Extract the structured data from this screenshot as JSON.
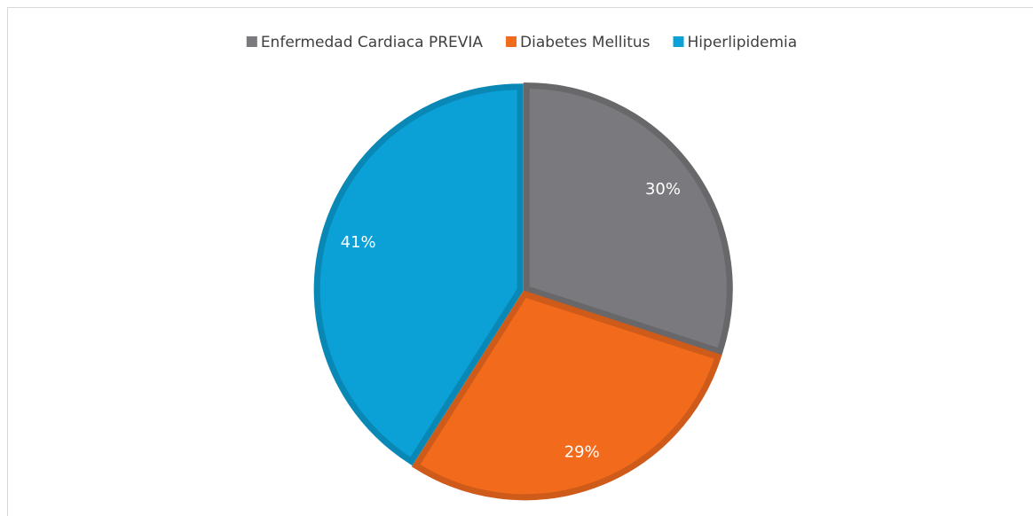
{
  "chart_data": {
    "type": "pie",
    "categories": [
      "Enfermedad Cardiaca PREVIA",
      "Diabetes Mellitus",
      "Hiperlipidemia"
    ],
    "values": [
      30,
      29,
      41
    ],
    "value_labels": [
      "30%",
      "29%",
      "41%"
    ],
    "colors": [
      "#7a7a7e",
      "#f26b1d",
      "#0ba0d6"
    ],
    "legend": "top"
  }
}
